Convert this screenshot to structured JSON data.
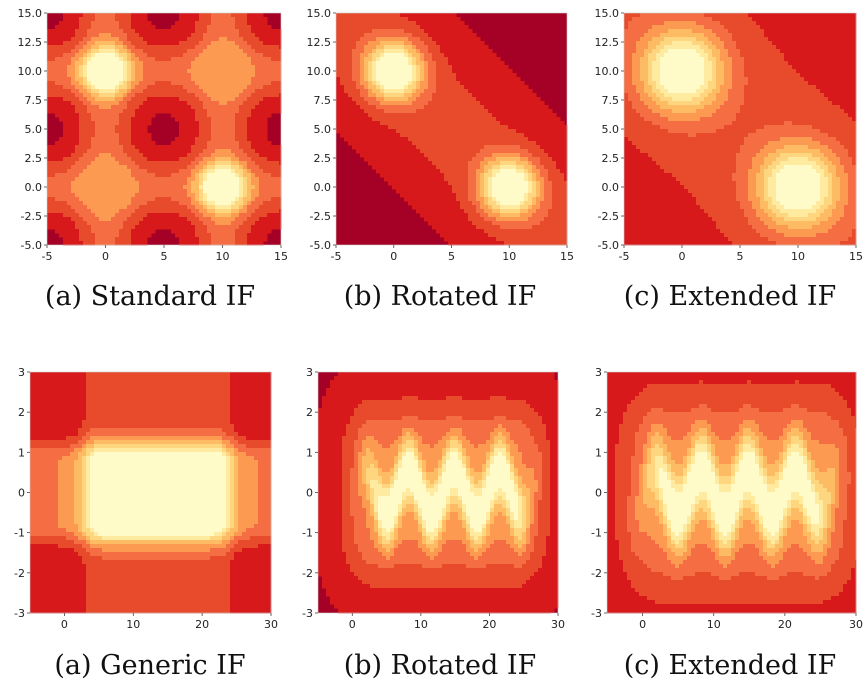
{
  "captions": {
    "top": [
      "(a) Standard IF",
      "(b) Rotated IF",
      "(c) Extended IF"
    ],
    "bottom": [
      "(a) Generic IF",
      "(b) Rotated IF",
      "(c) Extended IF"
    ]
  },
  "palette": [
    "#a50026",
    "#d7191c",
    "#e84a2c",
    "#f46d43",
    "#fb9a50",
    "#fdbb63",
    "#fed680",
    "#ffeba0",
    "#fffbc8"
  ],
  "chart_data": [
    {
      "type": "heatmap",
      "variant": "filled-contour",
      "model": "standard",
      "title": "",
      "xlabel": "",
      "ylabel": "",
      "xlim": [
        -5,
        15
      ],
      "ylim": [
        -5,
        15
      ],
      "xticks": [
        -5,
        0,
        5,
        10,
        15
      ],
      "yticks": [
        -5.0,
        -2.5,
        0.0,
        2.5,
        5.0,
        7.5,
        10.0,
        12.5,
        15.0
      ],
      "hotspots": [
        {
          "x": 0,
          "y": 10
        },
        {
          "x": 10,
          "y": 0
        }
      ]
    },
    {
      "type": "heatmap",
      "variant": "filled-contour",
      "model": "rotated",
      "title": "",
      "xlabel": "",
      "ylabel": "",
      "xlim": [
        -5,
        15
      ],
      "ylim": [
        -5,
        15
      ],
      "xticks": [
        -5,
        0,
        5,
        10,
        15
      ],
      "yticks": [
        -5.0,
        -2.5,
        0.0,
        2.5,
        5.0,
        7.5,
        10.0,
        12.5,
        15.0
      ],
      "hotspots": [
        {
          "x": 0,
          "y": 10
        },
        {
          "x": 10,
          "y": 0
        }
      ]
    },
    {
      "type": "heatmap",
      "variant": "filled-contour",
      "model": "extended",
      "title": "",
      "xlabel": "",
      "ylabel": "",
      "xlim": [
        -5,
        15
      ],
      "ylim": [
        -5,
        15
      ],
      "xticks": [
        -5,
        0,
        5,
        10,
        15
      ],
      "yticks": [
        -5.0,
        -2.5,
        0.0,
        2.5,
        5.0,
        7.5,
        10.0,
        12.5,
        15.0
      ],
      "hotspots": [
        {
          "x": 0,
          "y": 10
        },
        {
          "x": 10,
          "y": 0
        }
      ]
    },
    {
      "type": "heatmap",
      "variant": "filled-contour",
      "model": "generic",
      "title": "",
      "xlabel": "",
      "ylabel": "",
      "xlim": [
        -5,
        30
      ],
      "ylim": [
        -3,
        3
      ],
      "xticks": [
        0,
        10,
        20,
        30
      ],
      "yticks": [
        -3,
        -2,
        -1,
        0,
        1,
        2,
        3
      ],
      "data_extent": {
        "x": [
          2,
          25
        ],
        "y": [
          -1,
          1
        ]
      }
    },
    {
      "type": "heatmap",
      "variant": "filled-contour",
      "model": "rotated-sine",
      "title": "",
      "xlabel": "",
      "ylabel": "",
      "xlim": [
        -5,
        30
      ],
      "ylim": [
        -3,
        3
      ],
      "xticks": [
        0,
        10,
        20,
        30
      ],
      "yticks": [
        -3,
        -2,
        -1,
        0,
        1,
        2,
        3
      ],
      "data_extent": {
        "x": [
          2,
          25
        ],
        "y": [
          -1,
          1
        ]
      }
    },
    {
      "type": "heatmap",
      "variant": "filled-contour",
      "model": "extended-sine",
      "title": "",
      "xlabel": "",
      "ylabel": "",
      "xlim": [
        -5,
        30
      ],
      "ylim": [
        -3,
        3
      ],
      "xticks": [
        0,
        10,
        20,
        30
      ],
      "yticks": [
        -3,
        -2,
        -1,
        0,
        1,
        2,
        3
      ],
      "data_extent": {
        "x": [
          2,
          25
        ],
        "y": [
          -1,
          1
        ]
      }
    }
  ]
}
